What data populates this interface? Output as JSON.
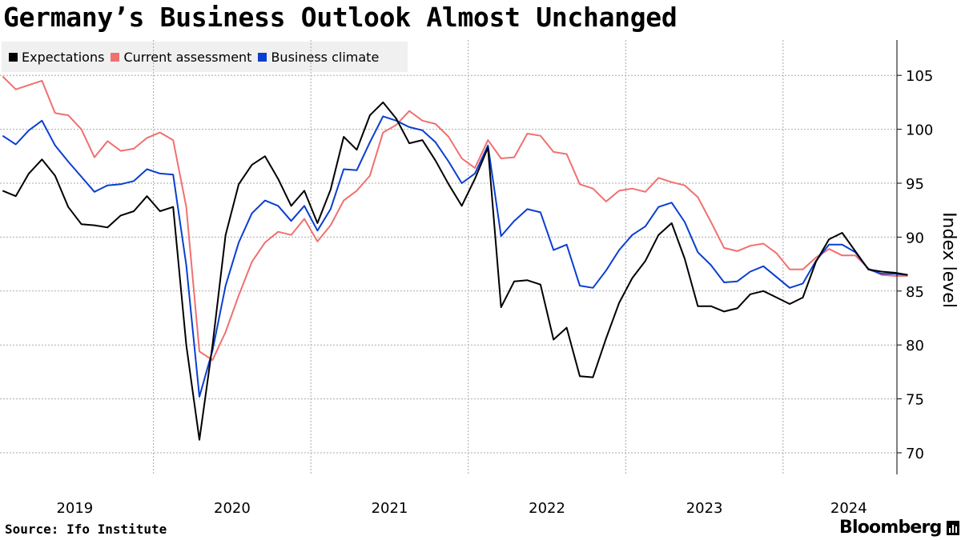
{
  "title": "Germany’s Business Outlook Almost Unchanged",
  "source": "Source: Ifo Institute",
  "brand": "Bloomberg",
  "legend": [
    {
      "label": "Expectations",
      "color": "#000000"
    },
    {
      "label": "Current assessment",
      "color": "#f07070"
    },
    {
      "label": "Business climate",
      "color": "#0a3fd0"
    }
  ],
  "chart_data": {
    "type": "line",
    "title": "Germany’s Business Outlook Almost Unchanged",
    "xlabel": "",
    "ylabel": "Index level",
    "ylim": [
      68,
      108
    ],
    "yticks": [
      70,
      75,
      80,
      85,
      90,
      95,
      100,
      105
    ],
    "xtick_labels": [
      "2019",
      "2020",
      "2021",
      "2022",
      "2023",
      "2024"
    ],
    "x_start": "2019-01",
    "x": [
      "2019-01",
      "2019-02",
      "2019-03",
      "2019-04",
      "2019-05",
      "2019-06",
      "2019-07",
      "2019-08",
      "2019-09",
      "2019-10",
      "2019-11",
      "2019-12",
      "2020-01",
      "2020-02",
      "2020-03",
      "2020-04",
      "2020-05",
      "2020-06",
      "2020-07",
      "2020-08",
      "2020-09",
      "2020-10",
      "2020-11",
      "2020-12",
      "2021-01",
      "2021-02",
      "2021-03",
      "2021-04",
      "2021-05",
      "2021-06",
      "2021-07",
      "2021-08",
      "2021-09",
      "2021-10",
      "2021-11",
      "2021-12",
      "2022-01",
      "2022-02",
      "2022-03",
      "2022-04",
      "2022-05",
      "2022-06",
      "2022-07",
      "2022-08",
      "2022-09",
      "2022-10",
      "2022-11",
      "2022-12",
      "2023-01",
      "2023-02",
      "2023-03",
      "2023-04",
      "2023-05",
      "2023-06",
      "2023-07",
      "2023-08",
      "2023-09",
      "2023-10",
      "2023-11",
      "2023-12",
      "2024-01",
      "2024-02",
      "2024-03",
      "2024-04",
      "2024-05",
      "2024-06",
      "2024-07",
      "2024-08",
      "2024-09",
      "2024-10"
    ],
    "series": [
      {
        "name": "Expectations",
        "color": "#000000",
        "values": [
          94.3,
          93.8,
          95.9,
          97.2,
          95.7,
          92.8,
          91.2,
          91.1,
          90.9,
          92.0,
          92.4,
          93.8,
          92.4,
          92.8,
          80.0,
          71.2,
          80.0,
          90.2,
          94.9,
          96.7,
          97.5,
          95.4,
          92.9,
          94.3,
          91.3,
          94.4,
          99.3,
          98.1,
          101.3,
          102.5,
          101.0,
          98.7,
          99.0,
          97.1,
          94.9,
          92.9,
          95.4,
          98.3,
          83.5,
          85.9,
          86.0,
          85.6,
          80.5,
          81.6,
          77.1,
          77.0,
          80.6,
          83.9,
          86.2,
          87.8,
          90.2,
          91.3,
          88.0,
          83.6,
          83.6,
          83.1,
          83.4,
          84.7,
          85.0,
          84.4,
          83.8,
          84.4,
          87.7,
          89.8,
          90.4,
          88.7,
          87.0,
          86.8,
          86.7,
          86.5
        ]
      },
      {
        "name": "Current assessment",
        "color": "#f07070",
        "values": [
          104.9,
          103.7,
          104.1,
          104.5,
          101.5,
          101.3,
          100.0,
          97.4,
          98.9,
          98.0,
          98.2,
          99.2,
          99.7,
          99.0,
          92.8,
          79.4,
          78.6,
          81.2,
          84.6,
          87.7,
          89.5,
          90.5,
          90.2,
          91.7,
          89.6,
          91.1,
          93.4,
          94.3,
          95.7,
          99.7,
          100.4,
          101.7,
          100.8,
          100.5,
          99.3,
          97.3,
          96.4,
          99.0,
          97.3,
          97.4,
          99.6,
          99.4,
          97.9,
          97.7,
          94.9,
          94.5,
          93.3,
          94.3,
          94.5,
          94.2,
          95.5,
          95.1,
          94.8,
          93.7,
          91.4,
          89.0,
          88.7,
          89.2,
          89.4,
          88.5,
          87.0,
          87.0,
          88.1,
          88.9,
          88.3,
          88.3,
          87.1,
          86.5,
          86.4,
          86.4
        ]
      },
      {
        "name": "Business climate",
        "color": "#0a3fd0",
        "values": [
          99.4,
          98.6,
          99.9,
          100.8,
          98.5,
          97.0,
          95.6,
          94.2,
          94.8,
          94.9,
          95.2,
          96.3,
          95.9,
          95.8,
          87.4,
          75.2,
          79.5,
          85.5,
          89.5,
          92.2,
          93.4,
          92.9,
          91.5,
          92.9,
          90.6,
          92.6,
          96.3,
          96.2,
          98.8,
          101.2,
          100.8,
          100.2,
          99.9,
          98.8,
          97.0,
          95.0,
          95.9,
          98.5,
          90.1,
          91.5,
          92.6,
          92.3,
          88.8,
          89.3,
          85.5,
          85.3,
          86.9,
          88.8,
          90.2,
          91.0,
          92.8,
          93.2,
          91.4,
          88.6,
          87.4,
          85.8,
          85.9,
          86.8,
          87.3,
          86.3,
          85.3,
          85.7,
          87.8,
          89.3,
          89.3,
          88.6,
          87.0,
          86.6,
          86.6,
          86.5
        ]
      }
    ]
  }
}
